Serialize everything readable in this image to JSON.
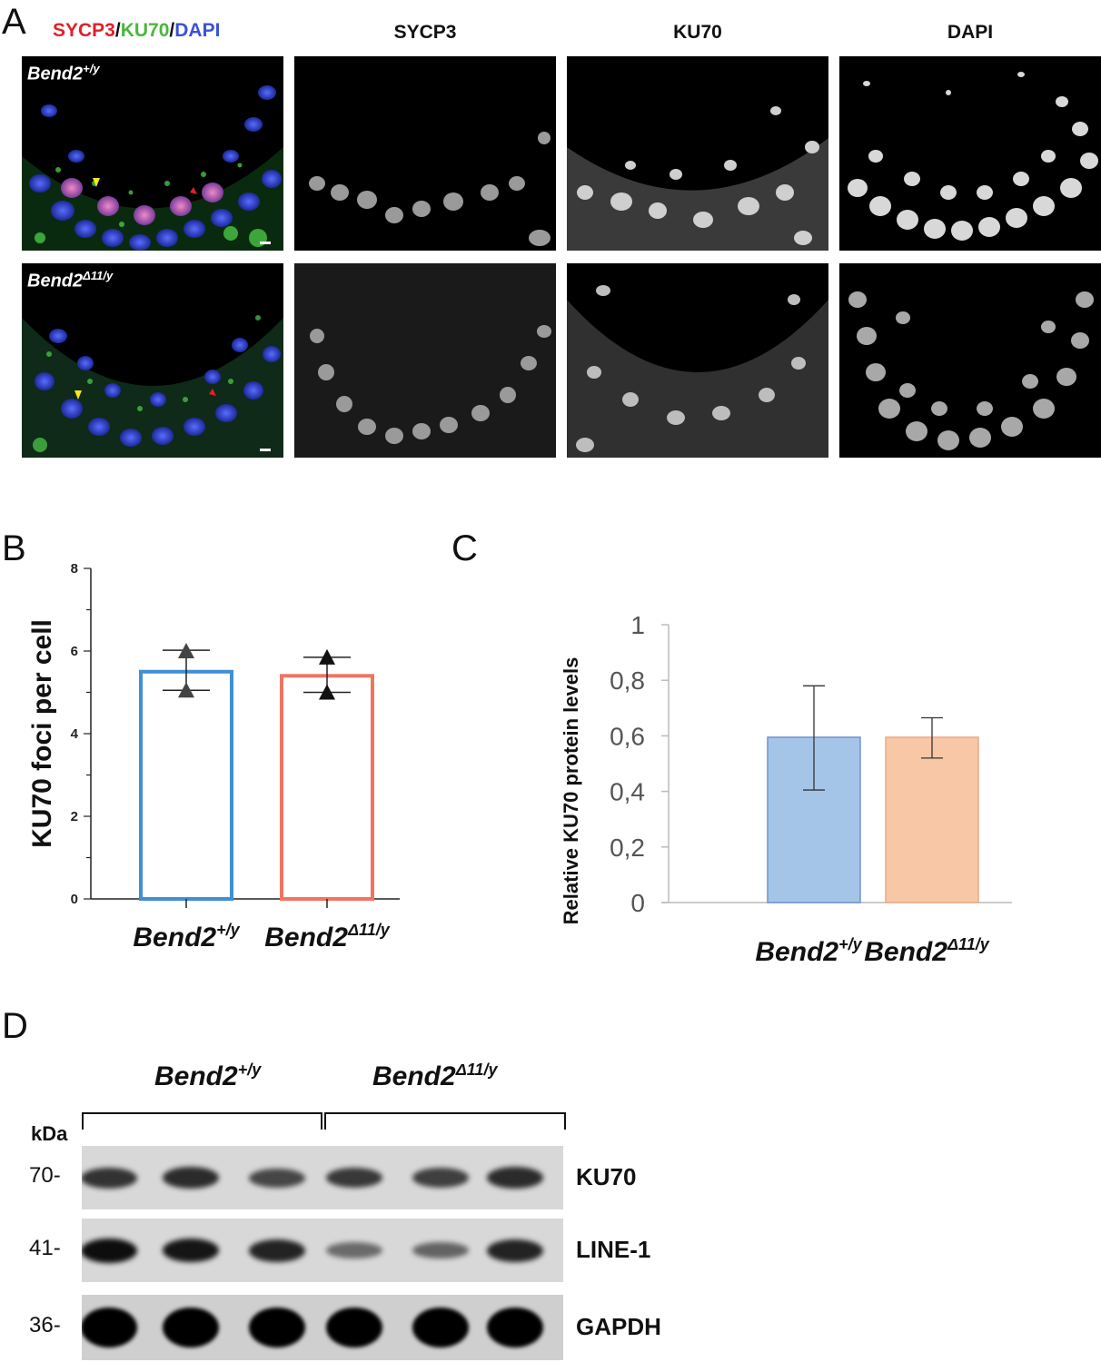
{
  "panels": {
    "a": "A",
    "b": "B",
    "c": "C",
    "d": "D"
  },
  "panel_a": {
    "merge_title": {
      "sycp3": "SYCP3",
      "sep1": "/",
      "ku70": "KU70",
      "sep2": "/",
      "dapi": "DAPI"
    },
    "columns": [
      "SYCP3",
      "KU70",
      "DAPI"
    ],
    "rows": [
      {
        "genotype": "Bend2",
        "sup": "+/y"
      },
      {
        "genotype": "Bend2",
        "sup": "Δ11/y"
      }
    ],
    "colors": {
      "sycp3": "#e0202a",
      "ku70": "#49b83b",
      "dapi": "#3b52d6"
    }
  },
  "chart_data": [
    {
      "type": "bar",
      "panel": "B",
      "ylabel": "KU70 foci per cell",
      "ylim": [
        0,
        8
      ],
      "yticks": [
        0,
        2,
        4,
        6,
        8
      ],
      "categories": [
        {
          "name": "Bend2",
          "sup": "+/y"
        },
        {
          "name": "Bend2",
          "sup": "Δ11/y"
        }
      ],
      "values": [
        5.5,
        5.4
      ],
      "error_low": [
        5.05,
        5.0
      ],
      "error_high": [
        6.02,
        5.85
      ],
      "points": [
        [
          6.0,
          5.05
        ],
        [
          5.85,
          5.0
        ]
      ],
      "colors": [
        "#3f8fd6",
        "#ef7561"
      ],
      "grid": false
    },
    {
      "type": "bar",
      "panel": "C",
      "ylabel": "Relative KU70 protein levels",
      "ylim": [
        0,
        1
      ],
      "yticks": [
        "0",
        "0,2",
        "0,4",
        "0,6",
        "0,8",
        "1"
      ],
      "categories": [
        {
          "name": "Bend2",
          "sup": "+/y"
        },
        {
          "name": "Bend2",
          "sup": "Δ11/y"
        }
      ],
      "values": [
        0.595,
        0.595
      ],
      "error_low": [
        0.405,
        0.52
      ],
      "error_high": [
        0.78,
        0.665
      ],
      "colors": [
        "#a5c5e8",
        "#f8c7a5"
      ],
      "grid": false
    }
  ],
  "panel_d": {
    "groups": [
      {
        "name": "Bend2",
        "sup": "+/y"
      },
      {
        "name": "Bend2",
        "sup": "Δ11/y"
      }
    ],
    "kda_label": "kDa",
    "blots": [
      {
        "kda": "70-",
        "label": "KU70",
        "intensity": [
          0.65,
          0.7,
          0.5,
          0.6,
          0.55,
          0.7
        ]
      },
      {
        "kda": "41-",
        "label": "LINE-1",
        "intensity": [
          0.9,
          0.85,
          0.75,
          0.25,
          0.3,
          0.75
        ]
      },
      {
        "kda": "36-",
        "label": "GAPDH",
        "intensity": [
          1.0,
          1.0,
          1.0,
          1.0,
          1.0,
          1.0
        ]
      }
    ]
  }
}
